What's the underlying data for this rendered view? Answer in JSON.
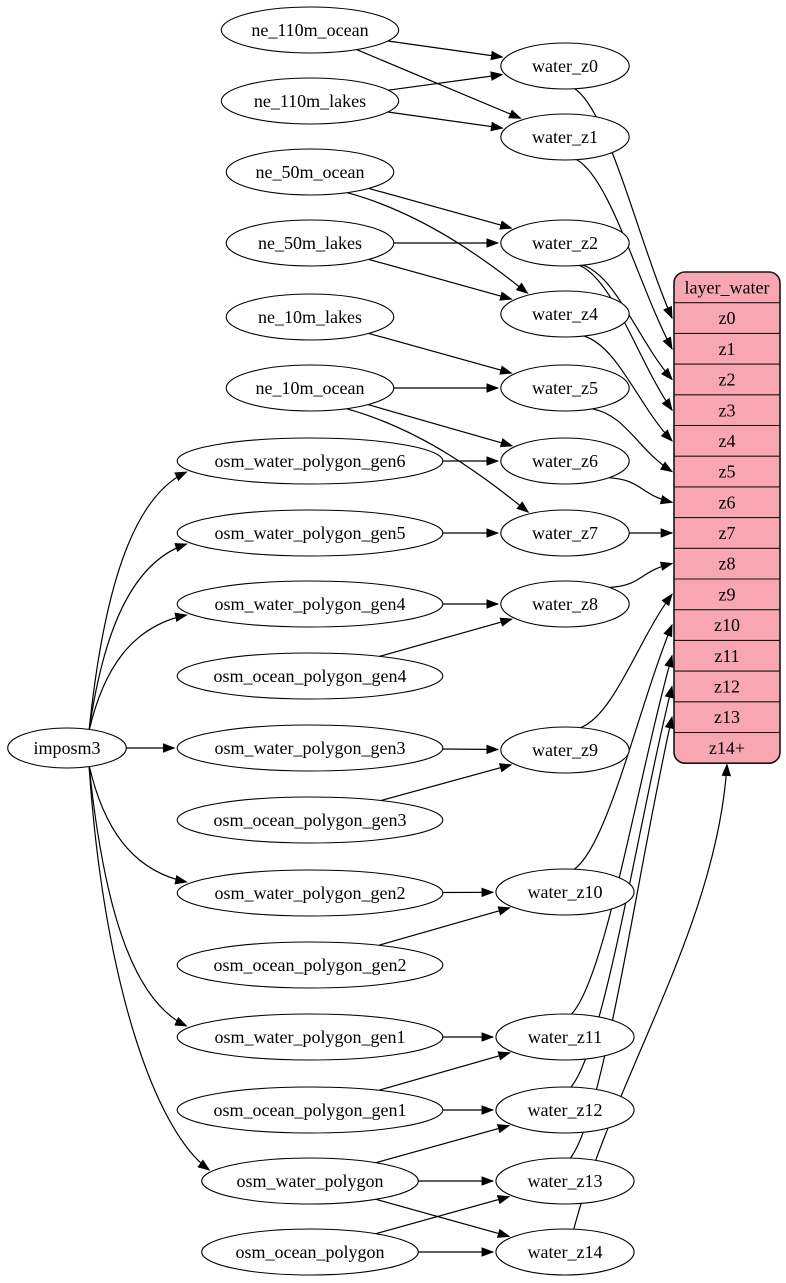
{
  "diagram": {
    "description": "ETL graph for the water layer: source tables feed water_z* views which fill the layer_water tile table",
    "colors": {
      "background": "#ffffff",
      "node_fill": "#ffffff",
      "node_stroke": "#000000",
      "edge_stroke": "#000000",
      "table_fill": "#f8a6b2",
      "table_stroke": "#161616"
    },
    "nodes": [
      {
        "id": "ne_110m_ocean",
        "label": "ne_110m_ocean",
        "kind": "source"
      },
      {
        "id": "ne_110m_lakes",
        "label": "ne_110m_lakes",
        "kind": "source"
      },
      {
        "id": "ne_50m_ocean",
        "label": "ne_50m_ocean",
        "kind": "source"
      },
      {
        "id": "ne_50m_lakes",
        "label": "ne_50m_lakes",
        "kind": "source"
      },
      {
        "id": "ne_10m_lakes",
        "label": "ne_10m_lakes",
        "kind": "source"
      },
      {
        "id": "ne_10m_ocean",
        "label": "ne_10m_ocean",
        "kind": "source"
      },
      {
        "id": "osm_water_polygon_gen6",
        "label": "osm_water_polygon_gen6",
        "kind": "source"
      },
      {
        "id": "osm_water_polygon_gen5",
        "label": "osm_water_polygon_gen5",
        "kind": "source"
      },
      {
        "id": "osm_water_polygon_gen4",
        "label": "osm_water_polygon_gen4",
        "kind": "source"
      },
      {
        "id": "osm_ocean_polygon_gen4",
        "label": "osm_ocean_polygon_gen4",
        "kind": "source"
      },
      {
        "id": "imposm3",
        "label": "imposm3",
        "kind": "importer"
      },
      {
        "id": "osm_water_polygon_gen3",
        "label": "osm_water_polygon_gen3",
        "kind": "source"
      },
      {
        "id": "osm_ocean_polygon_gen3",
        "label": "osm_ocean_polygon_gen3",
        "kind": "source"
      },
      {
        "id": "osm_water_polygon_gen2",
        "label": "osm_water_polygon_gen2",
        "kind": "source"
      },
      {
        "id": "osm_ocean_polygon_gen2",
        "label": "osm_ocean_polygon_gen2",
        "kind": "source"
      },
      {
        "id": "osm_water_polygon_gen1",
        "label": "osm_water_polygon_gen1",
        "kind": "source"
      },
      {
        "id": "osm_ocean_polygon_gen1",
        "label": "osm_ocean_polygon_gen1",
        "kind": "source"
      },
      {
        "id": "osm_water_polygon",
        "label": "osm_water_polygon",
        "kind": "source"
      },
      {
        "id": "osm_ocean_polygon",
        "label": "osm_ocean_polygon",
        "kind": "source"
      },
      {
        "id": "water_z0",
        "label": "water_z0",
        "kind": "view"
      },
      {
        "id": "water_z1",
        "label": "water_z1",
        "kind": "view"
      },
      {
        "id": "water_z2",
        "label": "water_z2",
        "kind": "view"
      },
      {
        "id": "water_z4",
        "label": "water_z4",
        "kind": "view"
      },
      {
        "id": "water_z5",
        "label": "water_z5",
        "kind": "view"
      },
      {
        "id": "water_z6",
        "label": "water_z6",
        "kind": "view"
      },
      {
        "id": "water_z7",
        "label": "water_z7",
        "kind": "view"
      },
      {
        "id": "water_z8",
        "label": "water_z8",
        "kind": "view"
      },
      {
        "id": "water_z9",
        "label": "water_z9",
        "kind": "view"
      },
      {
        "id": "water_z10",
        "label": "water_z10",
        "kind": "view"
      },
      {
        "id": "water_z11",
        "label": "water_z11",
        "kind": "view"
      },
      {
        "id": "water_z12",
        "label": "water_z12",
        "kind": "view"
      },
      {
        "id": "water_z13",
        "label": "water_z13",
        "kind": "view"
      },
      {
        "id": "water_z14",
        "label": "water_z14",
        "kind": "view"
      }
    ],
    "table": {
      "title": "layer_water",
      "rows": [
        "z0",
        "z1",
        "z2",
        "z3",
        "z4",
        "z5",
        "z6",
        "z7",
        "z8",
        "z9",
        "z10",
        "z11",
        "z12",
        "z13",
        "z14+"
      ]
    },
    "edges": [
      {
        "from": "ne_110m_ocean",
        "to": "water_z0"
      },
      {
        "from": "ne_110m_ocean",
        "to": "water_z1"
      },
      {
        "from": "ne_110m_lakes",
        "to": "water_z0"
      },
      {
        "from": "ne_110m_lakes",
        "to": "water_z1"
      },
      {
        "from": "ne_50m_ocean",
        "to": "water_z2"
      },
      {
        "from": "ne_50m_ocean",
        "to": "water_z4"
      },
      {
        "from": "ne_50m_lakes",
        "to": "water_z2"
      },
      {
        "from": "ne_50m_lakes",
        "to": "water_z4"
      },
      {
        "from": "ne_10m_lakes",
        "to": "water_z5"
      },
      {
        "from": "ne_10m_ocean",
        "to": "water_z5"
      },
      {
        "from": "ne_10m_ocean",
        "to": "water_z6"
      },
      {
        "from": "ne_10m_ocean",
        "to": "water_z7"
      },
      {
        "from": "osm_water_polygon_gen6",
        "to": "water_z6"
      },
      {
        "from": "osm_water_polygon_gen5",
        "to": "water_z7"
      },
      {
        "from": "osm_water_polygon_gen4",
        "to": "water_z8"
      },
      {
        "from": "osm_ocean_polygon_gen4",
        "to": "water_z8"
      },
      {
        "from": "osm_water_polygon_gen3",
        "to": "water_z9"
      },
      {
        "from": "osm_ocean_polygon_gen3",
        "to": "water_z9"
      },
      {
        "from": "osm_water_polygon_gen2",
        "to": "water_z10"
      },
      {
        "from": "osm_ocean_polygon_gen2",
        "to": "water_z10"
      },
      {
        "from": "osm_water_polygon_gen1",
        "to": "water_z11"
      },
      {
        "from": "osm_ocean_polygon_gen1",
        "to": "water_z11"
      },
      {
        "from": "osm_ocean_polygon_gen1",
        "to": "water_z12"
      },
      {
        "from": "osm_water_polygon",
        "to": "water_z12"
      },
      {
        "from": "osm_water_polygon",
        "to": "water_z13"
      },
      {
        "from": "osm_water_polygon",
        "to": "water_z14"
      },
      {
        "from": "osm_ocean_polygon",
        "to": "water_z13"
      },
      {
        "from": "osm_ocean_polygon",
        "to": "water_z14"
      },
      {
        "from": "imposm3",
        "to": "osm_water_polygon_gen6"
      },
      {
        "from": "imposm3",
        "to": "osm_water_polygon_gen5"
      },
      {
        "from": "imposm3",
        "to": "osm_water_polygon_gen4"
      },
      {
        "from": "imposm3",
        "to": "osm_water_polygon_gen3"
      },
      {
        "from": "imposm3",
        "to": "osm_water_polygon_gen2"
      },
      {
        "from": "imposm3",
        "to": "osm_water_polygon_gen1"
      },
      {
        "from": "imposm3",
        "to": "osm_water_polygon"
      },
      {
        "from": "water_z0",
        "to": "layer_water.z0"
      },
      {
        "from": "water_z1",
        "to": "layer_water.z1"
      },
      {
        "from": "water_z2",
        "to": "layer_water.z2"
      },
      {
        "from": "water_z2",
        "to": "layer_water.z3"
      },
      {
        "from": "water_z4",
        "to": "layer_water.z4"
      },
      {
        "from": "water_z5",
        "to": "layer_water.z5"
      },
      {
        "from": "water_z6",
        "to": "layer_water.z6"
      },
      {
        "from": "water_z7",
        "to": "layer_water.z7"
      },
      {
        "from": "water_z8",
        "to": "layer_water.z8"
      },
      {
        "from": "water_z9",
        "to": "layer_water.z9"
      },
      {
        "from": "water_z10",
        "to": "layer_water.z10"
      },
      {
        "from": "water_z11",
        "to": "layer_water.z11"
      },
      {
        "from": "water_z12",
        "to": "layer_water.z12"
      },
      {
        "from": "water_z13",
        "to": "layer_water.z13"
      },
      {
        "from": "water_z14",
        "to": "layer_water.z14+"
      }
    ]
  }
}
